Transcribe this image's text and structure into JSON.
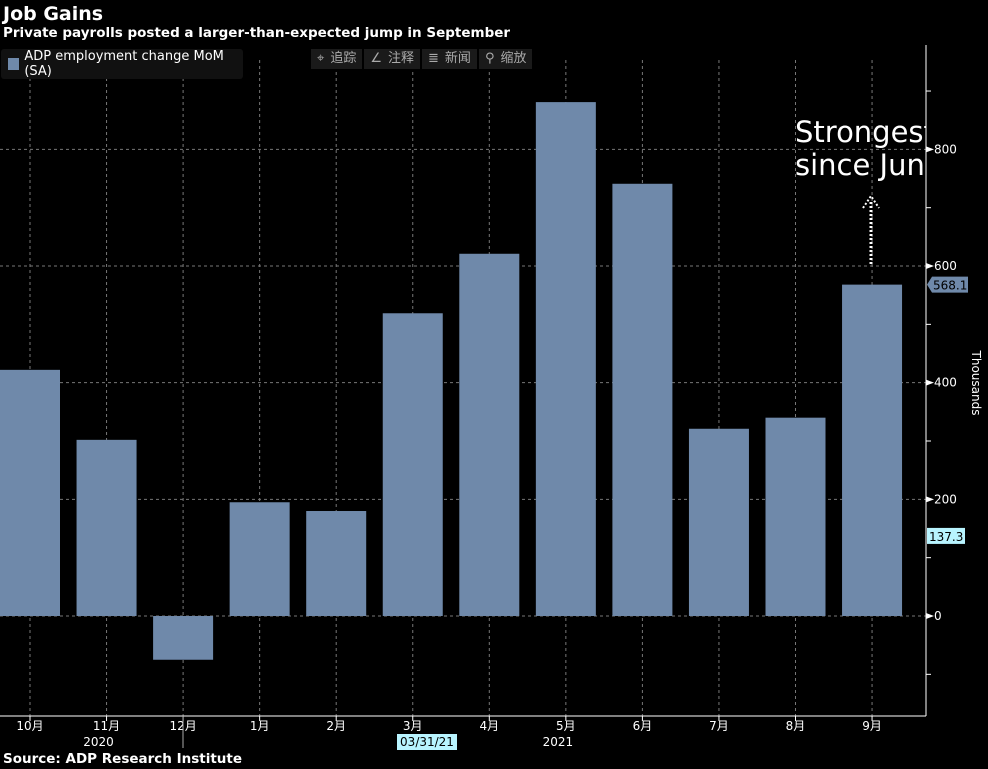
{
  "title": "Job Gains",
  "subtitle": "Private payrolls posted a larger-than-expected jump in September",
  "source": "Source: ADP Research Institute",
  "toolbar": [
    {
      "icon": "crosshair-icon",
      "glyph": "⌖",
      "label": "追踪"
    },
    {
      "icon": "pencil-icon",
      "glyph": "∠",
      "label": "注释"
    },
    {
      "icon": "news-icon",
      "glyph": "≣",
      "label": "新闻"
    },
    {
      "icon": "zoom-icon",
      "glyph": "⚲",
      "label": "缩放"
    }
  ],
  "annotation": {
    "line1": "Strongest",
    "line2": "since Jun"
  },
  "chart_data": {
    "type": "bar",
    "title": "Job Gains",
    "subtitle": "Private payrolls posted a larger-than-expected jump in September",
    "categories": [
      "10月",
      "11月",
      "12月",
      "1月",
      "2月",
      "3月",
      "4月",
      "5月",
      "6月",
      "7月",
      "8月",
      "9月"
    ],
    "year_labels": [
      {
        "label": "2020",
        "at": "11月"
      },
      {
        "label": "2021",
        "at": "5月"
      }
    ],
    "cursor_date": "03/31/21",
    "series": [
      {
        "name": "ADP employment change MoM (SA)",
        "color": "#6f89aa",
        "values": [
          422,
          302,
          -75,
          195,
          180,
          519,
          621,
          881,
          741,
          321,
          340,
          568.1
        ]
      }
    ],
    "ylabel": "Thousands",
    "ylim": [
      -180,
      960
    ],
    "yticks": [
      0,
      200,
      400,
      600,
      800
    ],
    "last_value_label": "568.1",
    "marker_value_label": "137.3",
    "marker_value": 137.3,
    "grid": true,
    "legend": "top-left"
  }
}
